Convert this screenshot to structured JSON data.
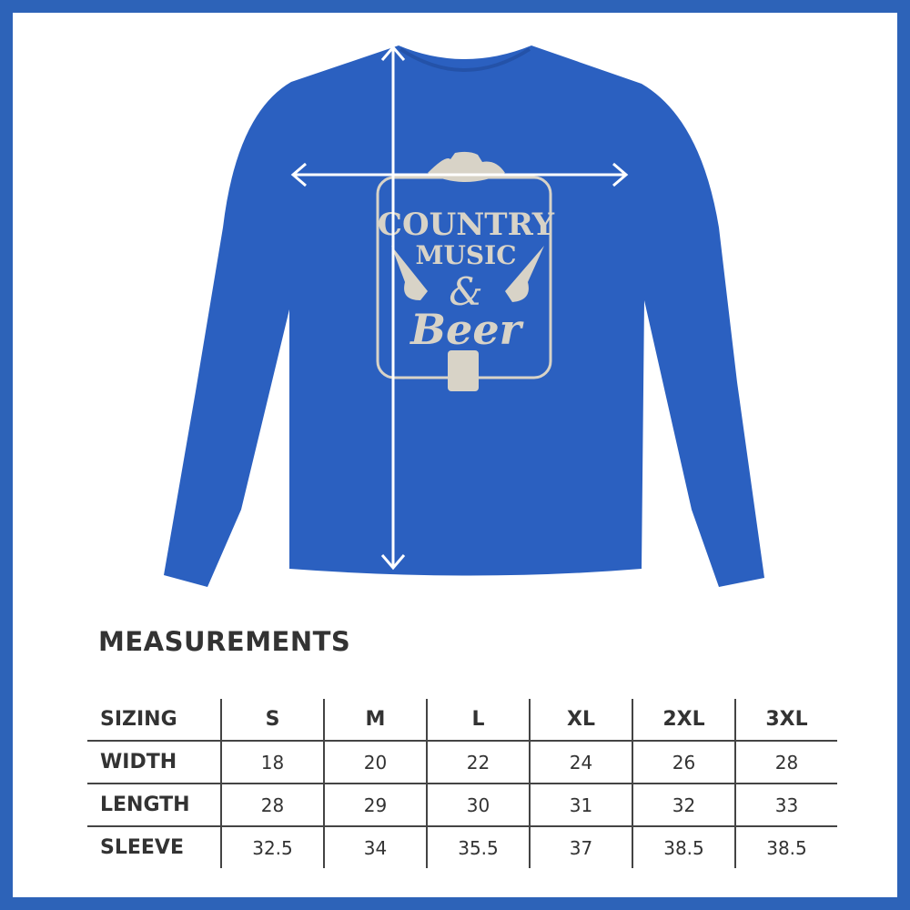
{
  "colors": {
    "frame": "#2d63b8",
    "shirt": "#2b60c0",
    "print": "#d8d3c7",
    "text": "#333333"
  },
  "product": {
    "print_text": [
      "COUNTRY",
      "MUSIC",
      "&",
      "Beer"
    ],
    "measure_arrows": [
      "width-arrow",
      "length-arrow"
    ]
  },
  "measurements": {
    "title": "MEASUREMENTS",
    "header": {
      "label": "SIZING",
      "sizes": [
        "S",
        "M",
        "L",
        "XL",
        "2XL",
        "3XL"
      ]
    },
    "rows": [
      {
        "label": "WIDTH",
        "values": [
          "18",
          "20",
          "22",
          "24",
          "26",
          "28"
        ]
      },
      {
        "label": "LENGTH",
        "values": [
          "28",
          "29",
          "30",
          "31",
          "32",
          "33"
        ]
      },
      {
        "label": "SLEEVE",
        "values": [
          "32.5",
          "34",
          "35.5",
          "37",
          "38.5",
          "38.5"
        ]
      }
    ]
  }
}
